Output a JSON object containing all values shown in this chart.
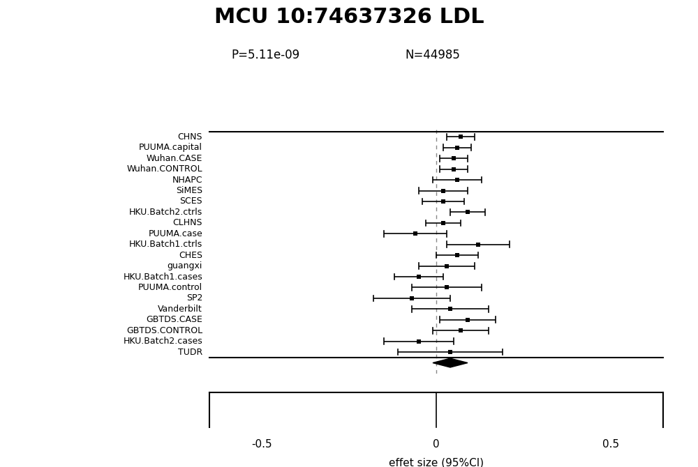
{
  "title": "MCU 10:74637326 LDL",
  "p_value": "P=5.11e-09",
  "n_value": "N=44985",
  "xlabel": "effet size (95%CI)",
  "xlim": [
    -0.65,
    0.65
  ],
  "xticks": [
    -0.5,
    0,
    0.5
  ],
  "xticklabels": [
    "-0.5",
    "0",
    "0.5"
  ],
  "studies": [
    "CHNS",
    "PUUMA.capital",
    "Wuhan.CASE",
    "Wuhan.CONTROL",
    "NHAPC",
    "SiMES",
    "SCES",
    "HKU.Batch2.ctrls",
    "CLHNS",
    "PUUMA.case",
    "HKU.Batch1.ctrls",
    "CHES",
    "guangxi",
    "HKU.Batch1.cases",
    "PUUMA.control",
    "SP2",
    "Vanderbilt",
    "GBTDS.CASE",
    "GBTDS.CONTROL",
    "HKU.Batch2.cases",
    "TUDR"
  ],
  "effects": [
    0.07,
    0.06,
    0.05,
    0.05,
    0.06,
    0.02,
    0.02,
    0.09,
    0.02,
    -0.06,
    0.12,
    0.06,
    0.03,
    -0.05,
    0.03,
    -0.07,
    0.04,
    0.09,
    0.07,
    -0.05,
    0.04
  ],
  "ci_low": [
    0.03,
    0.02,
    0.01,
    0.01,
    -0.01,
    -0.05,
    -0.04,
    0.04,
    -0.03,
    -0.15,
    0.03,
    0.0,
    -0.05,
    -0.12,
    -0.07,
    -0.18,
    -0.07,
    0.01,
    -0.01,
    -0.15,
    -0.11
  ],
  "ci_high": [
    0.11,
    0.1,
    0.09,
    0.09,
    0.13,
    0.09,
    0.08,
    0.14,
    0.07,
    0.03,
    0.21,
    0.12,
    0.11,
    0.02,
    0.13,
    0.04,
    0.15,
    0.17,
    0.15,
    0.05,
    0.19
  ],
  "summary_effect": 0.04,
  "summary_ci_low": -0.01,
  "summary_ci_high": 0.09,
  "background_color": "#ffffff",
  "line_color": "#000000",
  "marker_color": "#000000",
  "dashed_line_color": "#888888"
}
